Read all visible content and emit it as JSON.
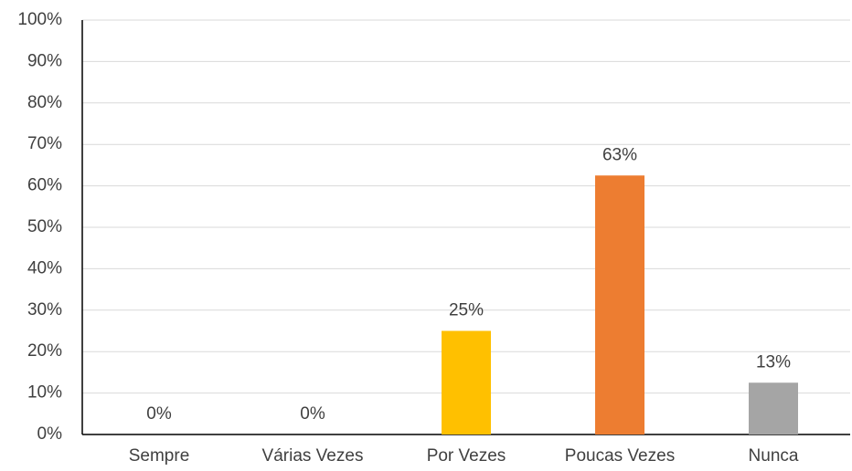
{
  "chart_data": {
    "type": "bar",
    "categories": [
      "Sempre",
      "Várias Vezes",
      "Por Vezes",
      "Poucas Vezes",
      "Nunca"
    ],
    "values": [
      0,
      0,
      25,
      62.5,
      12.5
    ],
    "value_labels": [
      "0%",
      "0%",
      "25%",
      "63%",
      "13%"
    ],
    "colors": [
      "#4472c4",
      "#5b9bd5",
      "#ffc000",
      "#ed7d31",
      "#a5a5a5"
    ],
    "ylim": [
      0,
      100
    ],
    "yticks": [
      {
        "value": 0,
        "label": "0%"
      },
      {
        "value": 10,
        "label": "10%"
      },
      {
        "value": 20,
        "label": "20%"
      },
      {
        "value": 30,
        "label": "30%"
      },
      {
        "value": 40,
        "label": "40%"
      },
      {
        "value": 50,
        "label": "50%"
      },
      {
        "value": 60,
        "label": "60%"
      },
      {
        "value": 70,
        "label": "70%"
      },
      {
        "value": 80,
        "label": "80%"
      },
      {
        "value": 90,
        "label": "90%"
      },
      {
        "value": 100,
        "label": "100%"
      }
    ],
    "grid": true
  }
}
